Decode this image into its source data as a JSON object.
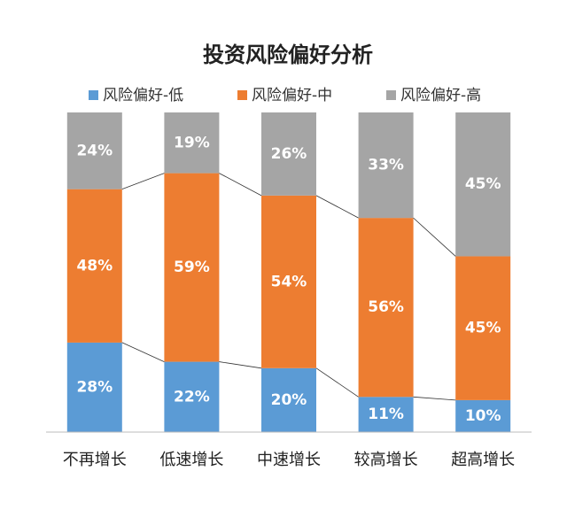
{
  "chart_data": {
    "type": "stacked_bar_100",
    "title": "投资风险偏好分析",
    "categories": [
      "不再增长",
      "低速增长",
      "中速增长",
      "较高增长",
      "超高增长"
    ],
    "series": [
      {
        "name": "风险偏好-低",
        "color": "#5b9bd5",
        "values": [
          28,
          22,
          20,
          11,
          10
        ],
        "value_labels": [
          "28%",
          "22%",
          "20%",
          "11%",
          "10%"
        ]
      },
      {
        "name": "风险偏好-中",
        "color": "#ed7d31",
        "values": [
          48,
          59,
          54,
          56,
          45
        ],
        "value_labels": [
          "48%",
          "59%",
          "54%",
          "56%",
          "45%"
        ]
      },
      {
        "name": "风险偏好-高",
        "color": "#a5a5a5",
        "values": [
          24,
          19,
          26,
          33,
          45
        ],
        "value_labels": [
          "24%",
          "19%",
          "26%",
          "33%",
          "45%"
        ]
      }
    ],
    "legend": "top"
  }
}
